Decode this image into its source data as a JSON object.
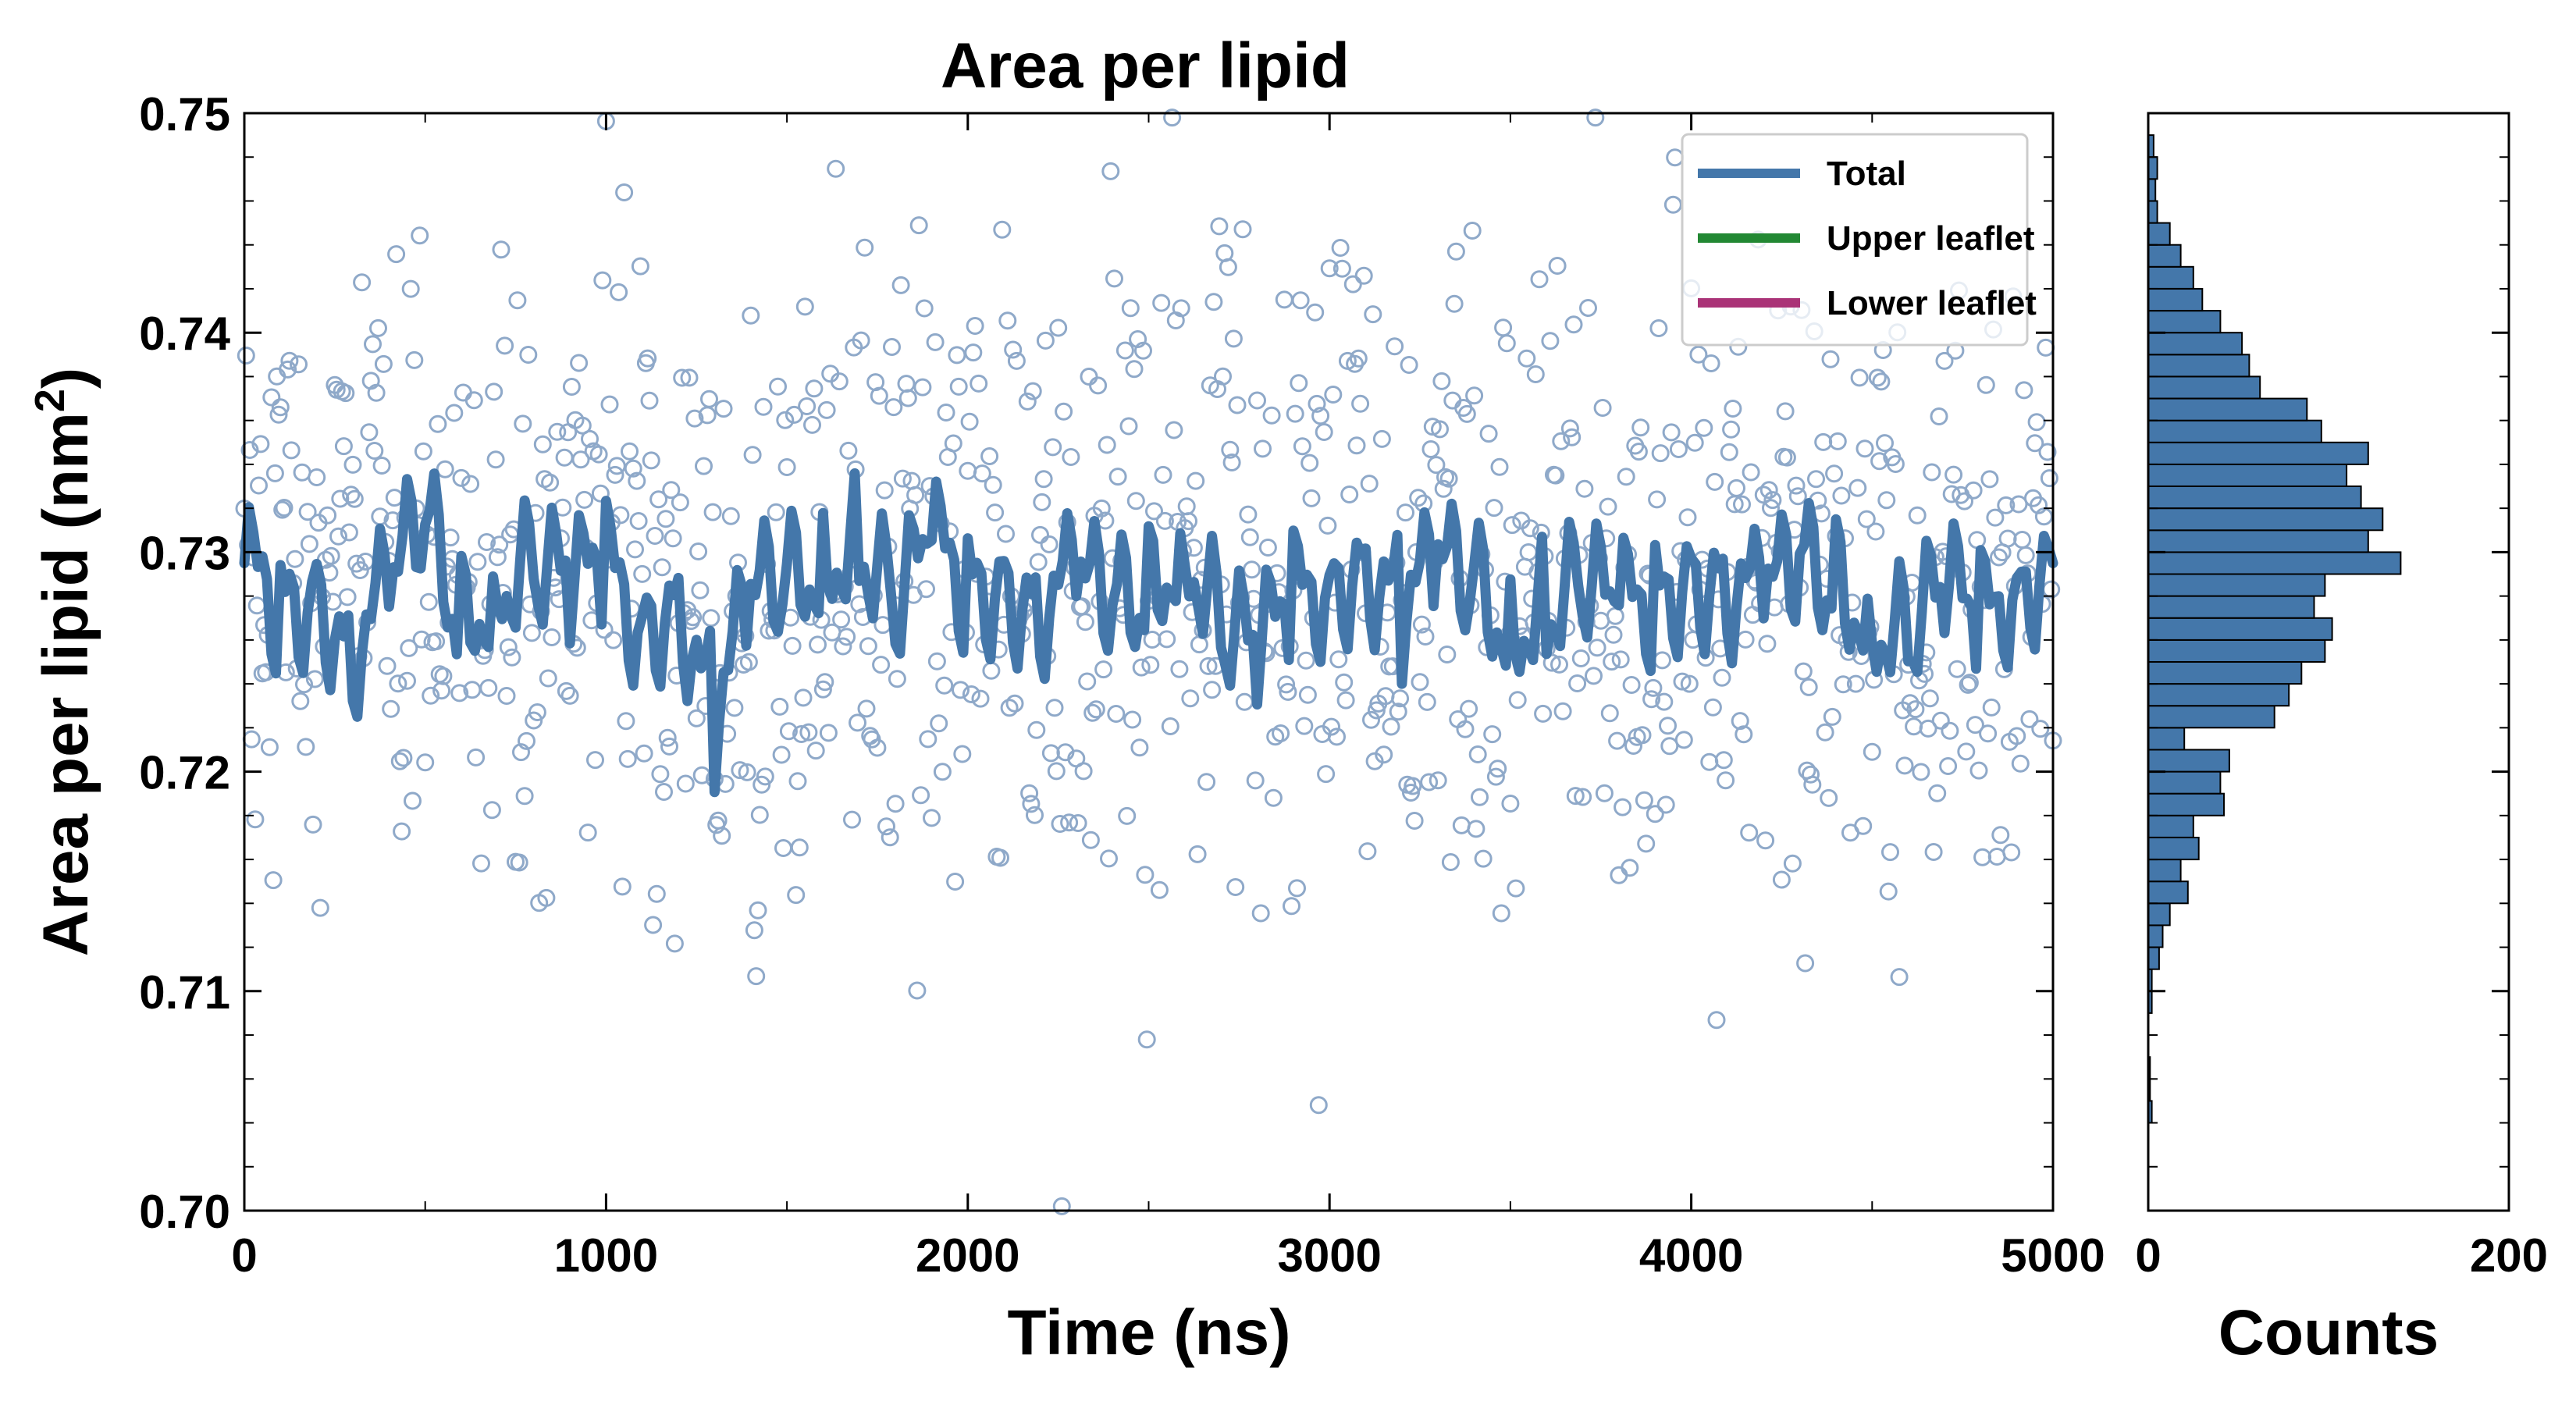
{
  "chart_data": [
    {
      "type": "scatter",
      "title": "Area per lipid",
      "xlabel": "Time (ns)",
      "ylabel": "Area per lipid (nm2)",
      "ylabel_main": "Area per lipid (nm",
      "ylabel_sup": "2",
      "ylabel_close": ")",
      "xlim": [
        0,
        5000
      ],
      "ylim": [
        0.7,
        0.75
      ],
      "xticks": [
        0,
        1000,
        2000,
        3000,
        4000,
        5000
      ],
      "xtick_labels": [
        "0",
        "1000",
        "2000",
        "3000",
        "4000",
        "5000"
      ],
      "yticks": [
        0.7,
        0.71,
        0.72,
        0.73,
        0.74,
        0.75
      ],
      "ytick_labels": [
        "0.70",
        "0.71",
        "0.72",
        "0.73",
        "0.74",
        "0.75"
      ],
      "grid": false,
      "legend_position": "top-right",
      "colors": {
        "total": "#4477aa",
        "upper": "#228833",
        "lower": "#aa3377",
        "marker": "#8fa9c9"
      },
      "legend": [
        "Total",
        "Upper leaflet",
        "Lower leaflet"
      ],
      "scatter_series": {
        "name": "Total",
        "x_start": 0,
        "x_step": 5,
        "x_end": 5000,
        "mean": 0.7285,
        "std": 0.0072,
        "note_values_generated_in_script": false
      },
      "line_series": {
        "name": "Total",
        "x": [
          0,
          100,
          200,
          300,
          400,
          500,
          600,
          700,
          800,
          900,
          1000,
          1100,
          1200,
          1300,
          1400,
          1500,
          1600,
          1700,
          1800,
          1900,
          2000,
          2100,
          2200,
          2300,
          2400,
          2500,
          2600,
          2700,
          2800,
          2900,
          3000,
          3100,
          3200,
          3300,
          3400,
          3500,
          3600,
          3700,
          3800,
          3900,
          4000,
          4100,
          4200,
          4300,
          4400,
          4500,
          4600,
          4700,
          4800,
          4900,
          5000
        ],
        "y": [
          0.7295,
          0.7275,
          0.728,
          0.7255,
          0.7285,
          0.7315,
          0.7265,
          0.7285,
          0.7295,
          0.7285,
          0.7295,
          0.7265,
          0.728,
          0.7225,
          0.728,
          0.7285,
          0.7295,
          0.7305,
          0.7275,
          0.7305,
          0.7285,
          0.7285,
          0.7275,
          0.729,
          0.7275,
          0.728,
          0.7305,
          0.7265,
          0.7255,
          0.728,
          0.7285,
          0.7295,
          0.7275,
          0.7295,
          0.7285,
          0.7265,
          0.7275,
          0.7285,
          0.7275,
          0.728,
          0.729,
          0.7285,
          0.728,
          0.7295,
          0.7285,
          0.727,
          0.726,
          0.7285,
          0.727,
          0.7285,
          0.7295
        ]
      }
    },
    {
      "type": "bar",
      "orientation": "horizontal",
      "xlabel": "Counts",
      "xlim": [
        0,
        200
      ],
      "xticks": [
        0,
        200
      ],
      "xtick_labels": [
        "0",
        "200"
      ],
      "ylim": [
        0.7,
        0.75
      ],
      "bin_width": 0.001,
      "bin_starts": [
        0.704,
        0.705,
        0.706,
        0.707,
        0.708,
        0.709,
        0.71,
        0.711,
        0.712,
        0.713,
        0.714,
        0.715,
        0.716,
        0.717,
        0.718,
        0.719,
        0.72,
        0.721,
        0.722,
        0.723,
        0.724,
        0.725,
        0.726,
        0.727,
        0.728,
        0.729,
        0.73,
        0.731,
        0.732,
        0.733,
        0.734,
        0.735,
        0.736,
        0.737,
        0.738,
        0.739,
        0.74,
        0.741,
        0.742,
        0.743,
        0.744,
        0.745,
        0.746,
        0.747,
        0.748
      ],
      "counts": [
        2,
        1,
        1,
        0,
        0,
        2,
        2,
        6,
        8,
        12,
        22,
        18,
        28,
        25,
        42,
        40,
        45,
        20,
        70,
        78,
        85,
        98,
        102,
        92,
        98,
        140,
        122,
        130,
        118,
        110,
        122,
        96,
        88,
        62,
        56,
        52,
        40,
        30,
        25,
        18,
        12,
        5,
        4,
        5,
        3
      ],
      "color": "#4477aa"
    }
  ]
}
